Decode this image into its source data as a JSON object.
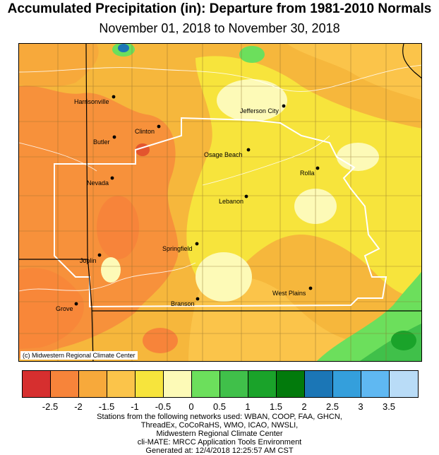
{
  "title": "Accumulated Precipitation (in): Departure from 1981-2010 Normals",
  "subtitle": "November 01, 2018 to November 30, 2018",
  "map": {
    "copyright": "(c) Midwestern Regional Climate Center",
    "cities": [
      {
        "name": "Harrisonville"
      },
      {
        "name": "Jefferson City"
      },
      {
        "name": "Clinton"
      },
      {
        "name": "Butler"
      },
      {
        "name": "Osage Beach"
      },
      {
        "name": "Rolla"
      },
      {
        "name": "Nevada"
      },
      {
        "name": "Lebanon"
      },
      {
        "name": "Springfield"
      },
      {
        "name": "Joplin"
      },
      {
        "name": "West Plains"
      },
      {
        "name": "Branson"
      },
      {
        "name": "Grove"
      }
    ]
  },
  "legend": {
    "colors": [
      "#d62f2f",
      "#f7843a",
      "#f7a93b",
      "#fbc44a",
      "#f7e43c",
      "#fdfab7",
      "#6cdf5c",
      "#40c04a",
      "#1aa32a",
      "#027a0c",
      "#1b76b6",
      "#349fdc",
      "#5fb8f2",
      "#b9dcf7"
    ],
    "ticks": [
      "-2.5",
      "-2",
      "-1.5",
      "-1",
      "-0.5",
      "0",
      "0.5",
      "1",
      "1.5",
      "2",
      "2.5",
      "3",
      "3.5"
    ]
  },
  "footer": {
    "line1": "Stations from the following networks used: WBAN, COOP, FAA, GHCN,",
    "line2": "ThreadEx, CoCoRaHS, WMO, ICAO, NWSLI,",
    "line3": "Midwestern Regional Climate Center",
    "line4": "cli-MATE: MRCC Application Tools Environment",
    "line5": "Generated at: 12/4/2018 12:25:57 AM CST"
  }
}
